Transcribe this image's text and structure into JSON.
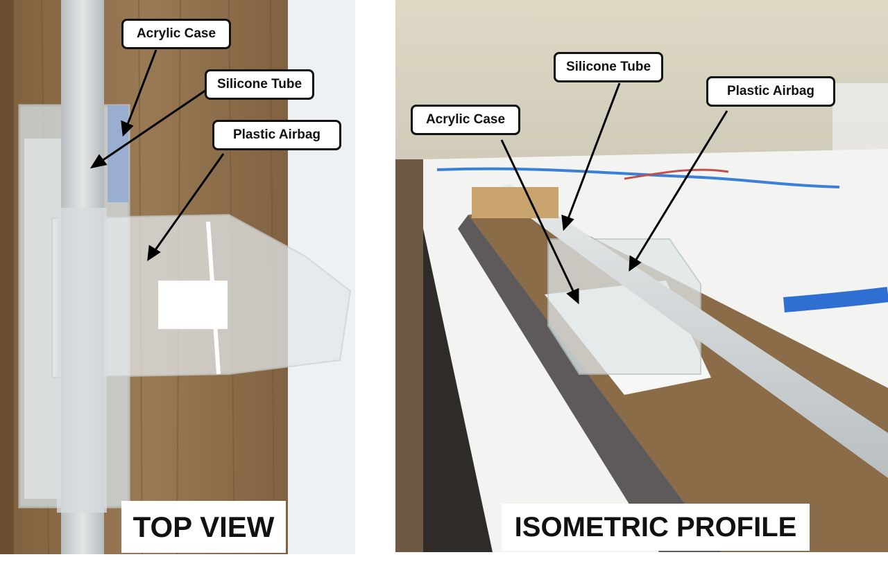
{
  "top_view": {
    "caption": "TOP VIEW",
    "labels": {
      "acrylic_case": "Acrylic Case",
      "silicone_tube": "Silicone Tube",
      "plastic_airbag": "Plastic Airbag"
    }
  },
  "isometric": {
    "caption": "ISOMETRIC PROFILE",
    "labels": {
      "silicone_tube": "Silicone Tube",
      "plastic_airbag": "Plastic Airbag",
      "acrylic_case": "Acrylic Case"
    }
  },
  "colors": {
    "wood": "#8a6a45",
    "wall": "#e8e4d6",
    "table": "#f4f4f2",
    "tube": "#d6dbdc",
    "blue_hose": "#2f6fd1"
  }
}
